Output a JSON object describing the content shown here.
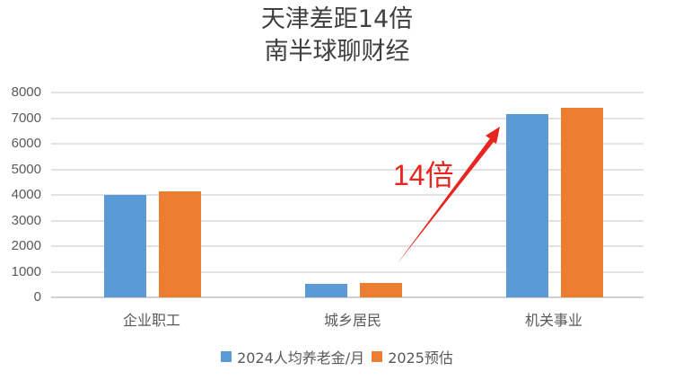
{
  "title": {
    "line1": "天津差距14倍",
    "line2": "南半球聊财经"
  },
  "annotation": {
    "text": "14倍",
    "color": "#e8251f"
  },
  "colors": {
    "series1": "#5b9bd5",
    "series2": "#ed7d31"
  },
  "y_ticks": [
    "8000",
    "7000",
    "6000",
    "5000",
    "4000",
    "3000",
    "2000",
    "1000",
    "0"
  ],
  "categories": [
    "企业职工",
    "城乡居民",
    "机关事业"
  ],
  "legend": [
    "2024人均养老金/月",
    "2025预估"
  ],
  "chart_data": {
    "type": "bar",
    "title": "天津差距14倍 南半球聊财经",
    "categories": [
      "企业职工",
      "城乡居民",
      "机关事业"
    ],
    "series": [
      {
        "name": "2024人均养老金/月",
        "values": [
          4000,
          530,
          7160
        ],
        "color": "#5b9bd5"
      },
      {
        "name": "2025预估",
        "values": [
          4150,
          560,
          7400
        ],
        "color": "#ed7d31"
      }
    ],
    "xlabel": "",
    "ylabel": "",
    "ylim": [
      0,
      8000
    ],
    "y_ticks": [
      0,
      1000,
      2000,
      3000,
      4000,
      5000,
      6000,
      7000,
      8000
    ],
    "grid": true,
    "legend_position": "bottom",
    "annotations": [
      {
        "text": "14倍",
        "type": "arrow",
        "from": "城乡居民",
        "to": "机关事业",
        "color": "#e8251f"
      }
    ]
  }
}
